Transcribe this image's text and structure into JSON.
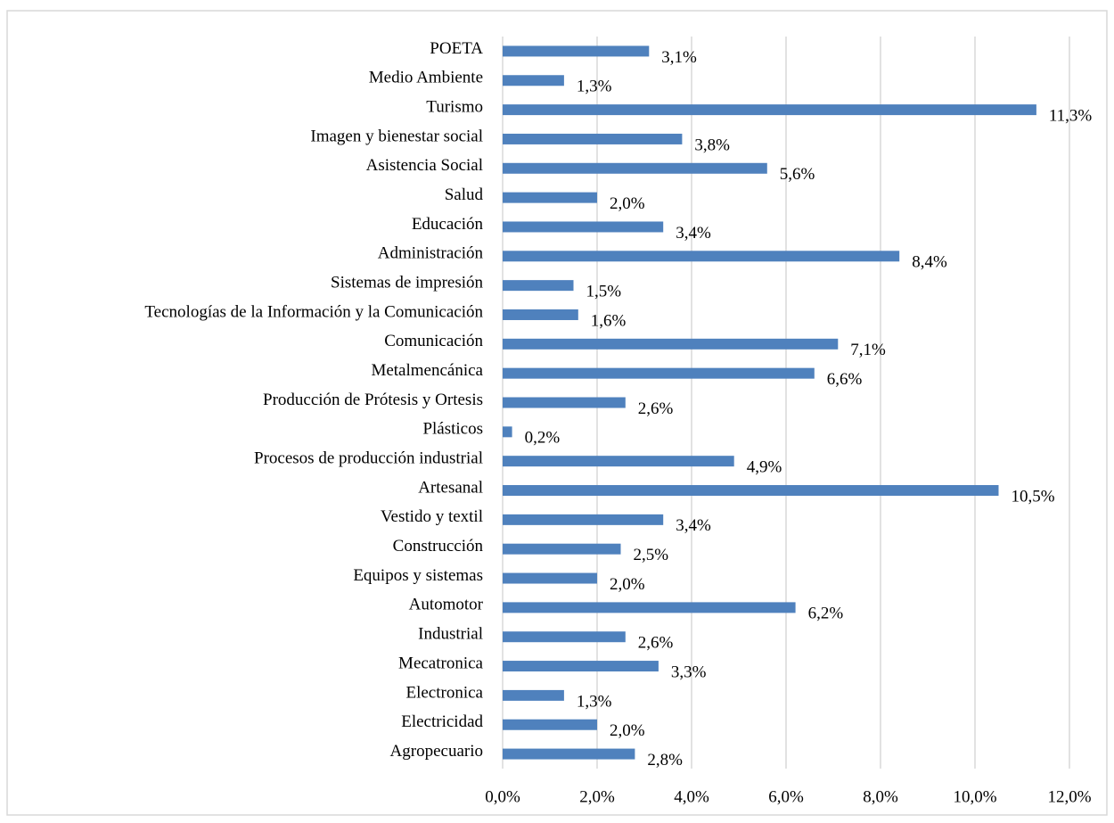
{
  "chart_data": {
    "type": "hbar",
    "categories": [
      "POETA",
      "Medio Ambiente",
      "Turismo",
      "Imagen y bienestar social",
      "Asistencia Social",
      "Salud",
      "Educación",
      "Administración",
      "Sistemas de impresión",
      "Tecnologías de la Información y la Comunicación",
      "Comunicación",
      "Metalmencánica",
      "Producción de Prótesis y Ortesis",
      "Plásticos",
      "Procesos de producción industrial",
      "Artesanal",
      "Vestido y textil",
      "Construcción",
      "Equipos y sistemas",
      "Automotor",
      "Industrial",
      "Mecatronica",
      "Electronica",
      "Electricidad",
      "Agropecuario"
    ],
    "values": [
      3.1,
      1.3,
      11.3,
      3.8,
      5.6,
      2.0,
      3.4,
      8.4,
      1.5,
      1.6,
      7.1,
      6.6,
      2.6,
      0.2,
      4.9,
      10.5,
      3.4,
      2.5,
      2.0,
      6.2,
      2.6,
      3.3,
      1.3,
      2.0,
      2.8
    ],
    "value_labels": [
      "3,1%",
      "1,3%",
      "11,3%",
      "3,8%",
      "5,6%",
      "2,0%",
      "3,4%",
      "8,4%",
      "1,5%",
      "1,6%",
      "7,1%",
      "6,6%",
      "2,6%",
      "0,2%",
      "4,9%",
      "10,5%",
      "3,4%",
      "2,5%",
      "2,0%",
      "6,2%",
      "2,6%",
      "3,3%",
      "1,3%",
      "2,0%",
      "2,8%"
    ],
    "color": "#4f81bd",
    "xlim": [
      0,
      12
    ],
    "xticks": [
      {
        "value": 0,
        "label": "0,0%"
      },
      {
        "value": 2,
        "label": "2,0%"
      },
      {
        "value": 4,
        "label": "4,0%"
      },
      {
        "value": 6,
        "label": "6,0%"
      },
      {
        "value": 8,
        "label": "8,0%"
      },
      {
        "value": 10,
        "label": "10,0%"
      },
      {
        "value": 12,
        "label": "12,0%"
      }
    ],
    "grid": true
  }
}
